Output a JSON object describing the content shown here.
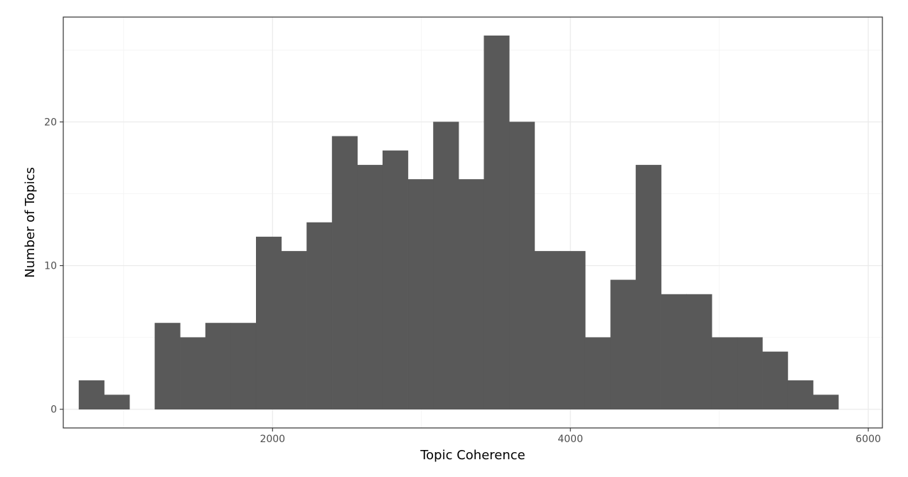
{
  "chart_data": {
    "type": "bar",
    "title": "",
    "xlabel": "Topic Coherence",
    "ylabel": "Number of Topics",
    "xlim": [
      595,
      6095
    ],
    "ylim": [
      -1.3,
      27.3
    ],
    "x_ticks": [
      2000,
      4000,
      6000
    ],
    "y_ticks": [
      0,
      10,
      20
    ],
    "x_minor": [
      1000,
      3000,
      5000
    ],
    "y_minor": [
      5,
      15,
      25
    ],
    "grid": true,
    "bin_width": 170,
    "bins": [
      {
        "x0": 700,
        "x1": 870,
        "count": 2
      },
      {
        "x0": 870,
        "x1": 1040,
        "count": 1
      },
      {
        "x0": 1040,
        "x1": 1210,
        "count": 0
      },
      {
        "x0": 1210,
        "x1": 1380,
        "count": 6
      },
      {
        "x0": 1380,
        "x1": 1550,
        "count": 5
      },
      {
        "x0": 1550,
        "x1": 1720,
        "count": 6
      },
      {
        "x0": 1720,
        "x1": 1890,
        "count": 6
      },
      {
        "x0": 1890,
        "x1": 2060,
        "count": 12
      },
      {
        "x0": 2060,
        "x1": 2230,
        "count": 11
      },
      {
        "x0": 2230,
        "x1": 2400,
        "count": 13
      },
      {
        "x0": 2400,
        "x1": 2570,
        "count": 19
      },
      {
        "x0": 2570,
        "x1": 2740,
        "count": 17
      },
      {
        "x0": 2740,
        "x1": 2910,
        "count": 18
      },
      {
        "x0": 2910,
        "x1": 3080,
        "count": 16
      },
      {
        "x0": 3080,
        "x1": 3250,
        "count": 20
      },
      {
        "x0": 3250,
        "x1": 3420,
        "count": 16
      },
      {
        "x0": 3420,
        "x1": 3590,
        "count": 26
      },
      {
        "x0": 3590,
        "x1": 3760,
        "count": 20
      },
      {
        "x0": 3760,
        "x1": 3930,
        "count": 11
      },
      {
        "x0": 3930,
        "x1": 4100,
        "count": 11
      },
      {
        "x0": 4100,
        "x1": 4270,
        "count": 5
      },
      {
        "x0": 4270,
        "x1": 4440,
        "count": 9
      },
      {
        "x0": 4440,
        "x1": 4610,
        "count": 17
      },
      {
        "x0": 4610,
        "x1": 4780,
        "count": 8
      },
      {
        "x0": 4780,
        "x1": 4950,
        "count": 8
      },
      {
        "x0": 4950,
        "x1": 5120,
        "count": 5
      },
      {
        "x0": 5120,
        "x1": 5290,
        "count": 5
      },
      {
        "x0": 5290,
        "x1": 5460,
        "count": 4
      },
      {
        "x0": 5460,
        "x1": 5630,
        "count": 2
      },
      {
        "x0": 5630,
        "x1": 5800,
        "count": 1
      }
    ],
    "colors": {
      "bar": "#595959",
      "panel_border": "#333333",
      "grid_major": "#ebebeb",
      "grid_minor": "#f2f2f2"
    }
  }
}
